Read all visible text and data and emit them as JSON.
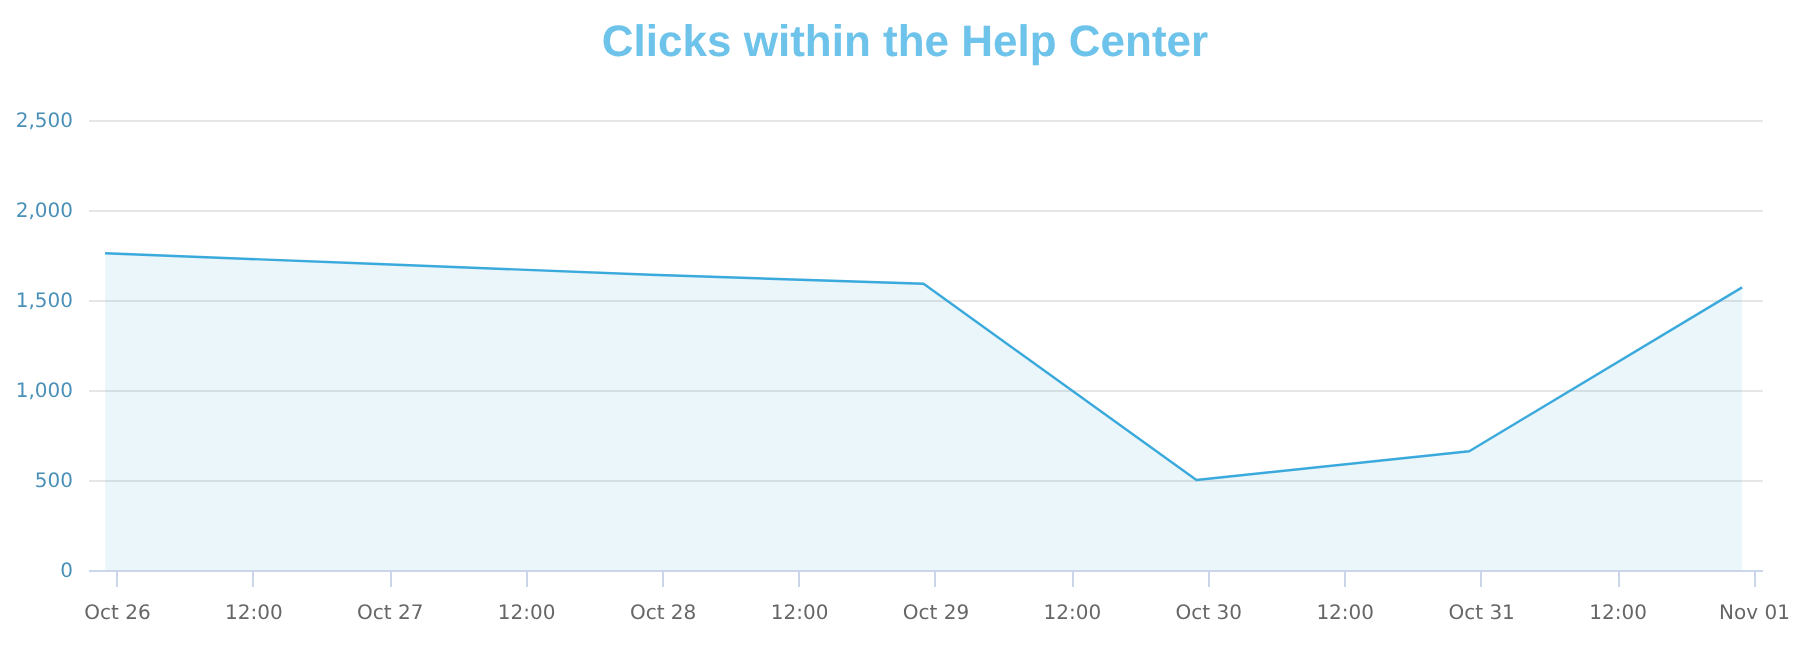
{
  "chart_data": {
    "type": "area",
    "title": "Clicks within the Help Center",
    "x": [
      "--10-25T23:00",
      "--10-26T23:00",
      "--10-27T23:00",
      "--10-28T23:00",
      "--10-29T23:00",
      "--10-30T23:00",
      "--10-31T23:00"
    ],
    "series": [
      {
        "color": "#3aa9dc",
        "values": [
          1760,
          1700,
          1640,
          1590,
          500,
          660,
          1570
        ]
      }
    ],
    "xlim": [
      "--10-25T21:30",
      "--11-01T00:45"
    ],
    "xticks": [
      {
        "value": "--10-26",
        "label": "Oct 26"
      },
      {
        "value": "--10-26T12:00",
        "label": "12:00"
      },
      {
        "value": "--10-27",
        "label": "Oct 27"
      },
      {
        "value": "--10-27T12:00",
        "label": "12:00"
      },
      {
        "value": "--10-28",
        "label": "Oct 28"
      },
      {
        "value": "--10-28T12:00",
        "label": "12:00"
      },
      {
        "value": "--10-29",
        "label": "Oct 29"
      },
      {
        "value": "--10-29T12:00",
        "label": "12:00"
      },
      {
        "value": "--10-30",
        "label": "Oct 30"
      },
      {
        "value": "--10-30T12:00",
        "label": "12:00"
      },
      {
        "value": "--10-31",
        "label": "Oct 31"
      },
      {
        "value": "--10-31T12:00",
        "label": "12:00"
      },
      {
        "value": "--11-01",
        "label": "Nov 01"
      }
    ],
    "ylim": [
      0,
      2500
    ],
    "yticks": [
      {
        "value": 0,
        "label": "0"
      },
      {
        "value": 500,
        "label": "500"
      },
      {
        "value": 1000,
        "label": "1,000"
      },
      {
        "value": 1500,
        "label": "1,500"
      },
      {
        "value": 2000,
        "label": "2,000"
      },
      {
        "value": 2500,
        "label": "2,500"
      }
    ],
    "grid": "y"
  }
}
